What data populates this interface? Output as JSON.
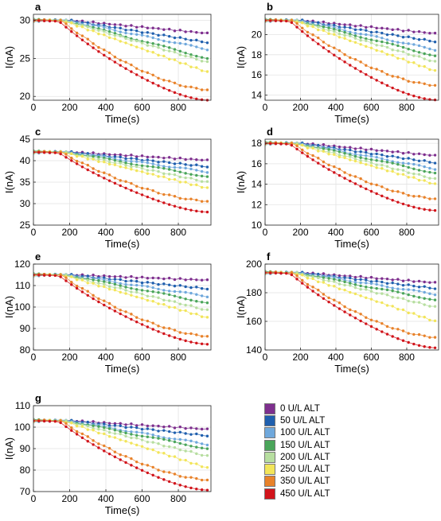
{
  "figure": {
    "x_label": "Time(s)",
    "y_label": "I(nA)",
    "x_ticks": [
      0,
      200,
      400,
      600,
      800
    ],
    "xlim": [
      0,
      980
    ],
    "time_points": [
      0,
      30,
      60,
      90,
      120,
      150,
      180,
      210,
      240,
      270,
      300,
      330,
      360,
      390,
      420,
      450,
      480,
      510,
      540,
      570,
      600,
      630,
      660,
      690,
      720,
      750,
      780,
      810,
      840,
      870,
      900,
      930,
      960
    ]
  },
  "legend": {
    "entries": [
      {
        "label": "0 U/L ALT",
        "color": "#7e2f8e"
      },
      {
        "label": "50 U/L ALT",
        "color": "#1f5fae"
      },
      {
        "label": "100 U/L ALT",
        "color": "#6fa8dc"
      },
      {
        "label": "150 U/L ALT",
        "color": "#4aa55a"
      },
      {
        "label": "200 U/L ALT",
        "color": "#b7dea0"
      },
      {
        "label": "250 U/L ALT",
        "color": "#f2e55a"
      },
      {
        "label": "350 U/L ALT",
        "color": "#e8822a"
      },
      {
        "label": "450 U/L ALT",
        "color": "#d1141b"
      }
    ]
  },
  "chart_data": [
    {
      "panel": "a",
      "type": "scatter",
      "xlabel": "Time(s)",
      "ylabel": "I(nA)",
      "ylim": [
        19.5,
        30.8
      ],
      "yticks": [
        20,
        25,
        30
      ],
      "plateau": [
        30,
        30,
        30,
        30,
        30,
        30,
        30,
        30
      ],
      "finals": [
        28.3,
        27.1,
        26.2,
        25.0,
        24.5,
        23.2,
        20.9,
        19.6
      ]
    },
    {
      "panel": "b",
      "type": "scatter",
      "xlabel": "Time(s)",
      "ylabel": "I(nA)",
      "ylim": [
        13.5,
        22.0
      ],
      "yticks": [
        14,
        16,
        18,
        20
      ],
      "plateau": [
        21.4,
        21.4,
        21.4,
        21.4,
        21.4,
        21.4,
        21.4,
        21.4
      ],
      "finals": [
        20.1,
        19.3,
        18.5,
        17.9,
        17.3,
        16.4,
        15.0,
        13.6
      ]
    },
    {
      "panel": "c",
      "type": "scatter",
      "xlabel": "Time(s)",
      "ylabel": "I(nA)",
      "ylim": [
        25,
        45
      ],
      "yticks": [
        25,
        30,
        35,
        40,
        45
      ],
      "plateau": [
        42,
        42,
        42,
        42,
        42,
        42,
        42,
        42
      ],
      "finals": [
        40.1,
        38.6,
        37.4,
        36.3,
        35.0,
        33.6,
        30.6,
        28.2
      ]
    },
    {
      "panel": "d",
      "type": "scatter",
      "xlabel": "Time(s)",
      "ylabel": "I(nA)",
      "ylim": [
        10,
        18.4
      ],
      "yticks": [
        10,
        12,
        14,
        16,
        18
      ],
      "plateau": [
        18,
        18,
        18,
        18,
        18,
        18,
        18,
        18
      ],
      "finals": [
        16.8,
        16.1,
        15.5,
        15.1,
        14.5,
        14.0,
        12.6,
        11.5
      ]
    },
    {
      "panel": "e",
      "type": "scatter",
      "xlabel": "Time(s)",
      "ylabel": "I(nA)",
      "ylim": [
        80,
        120
      ],
      "yticks": [
        80,
        90,
        100,
        110,
        120
      ],
      "plateau": [
        115,
        115,
        115,
        115,
        115,
        115,
        115,
        115
      ],
      "finals": [
        112.5,
        108.5,
        105.0,
        102.0,
        98.5,
        95.0,
        86.5,
        83.0
      ]
    },
    {
      "panel": "f",
      "type": "scatter",
      "xlabel": "Time(s)",
      "ylabel": "I(nA)",
      "ylim": [
        140,
        200
      ],
      "yticks": [
        140,
        160,
        180,
        200
      ],
      "plateau": [
        194,
        194,
        194,
        194,
        194,
        194,
        194,
        194
      ],
      "finals": [
        187,
        183,
        179,
        175,
        170,
        160,
        149,
        142
      ]
    },
    {
      "panel": "g",
      "type": "scatter",
      "xlabel": "Time(s)",
      "ylabel": "I(nA)",
      "ylim": [
        70,
        110
      ],
      "yticks": [
        70,
        80,
        90,
        100,
        110
      ],
      "plateau": [
        103,
        103,
        103,
        103,
        103,
        103,
        103,
        103
      ],
      "finals": [
        99.0,
        96.0,
        92.0,
        90.0,
        86.5,
        81.0,
        75.5,
        71.0
      ]
    }
  ]
}
